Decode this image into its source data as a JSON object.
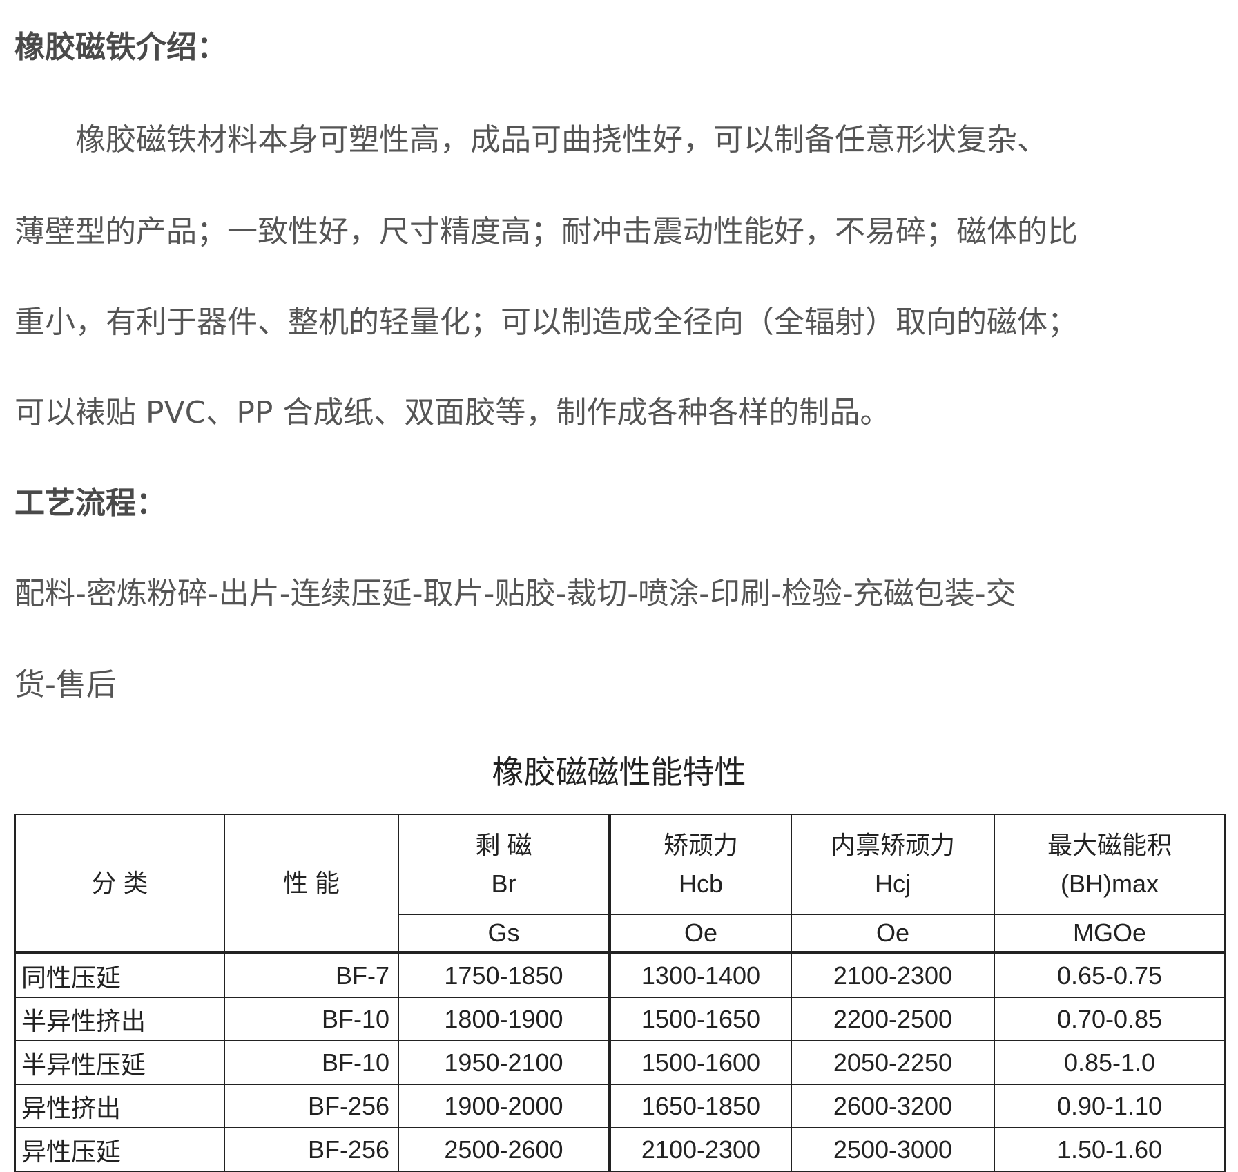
{
  "intro": {
    "heading": "橡胶磁铁介绍：",
    "lines": [
      "　　橡胶磁铁材料本身可塑性高，成品可曲挠性好，可以制备任意形状复杂、",
      "薄壁型的产品；一致性好，尺寸精度高；耐冲击震动性能好，不易碎；磁体的比",
      "重小，有利于器件、整机的轻量化；可以制造成全径向（全辐射）取向的磁体；",
      "可以裱贴 PVC、PP 合成纸、双面胶等，制作成各种各样的制品。"
    ]
  },
  "process": {
    "heading": "工艺流程：",
    "lines": [
      "配料-密炼粉碎-出片-连续压延-取片-贴胶-裁切-喷涂-印刷-检验-充磁包装-交",
      "货-售后"
    ]
  },
  "table": {
    "title": "橡胶磁磁性能特性",
    "headers": [
      "分 类",
      "性 能",
      "剩 磁\nBr",
      "矫顽力\nHcb",
      "内禀矫顽力\nHcj",
      "最大磁能积\n(BH)max"
    ],
    "units": [
      "Gs",
      "Oe",
      "Oe",
      "MGOe"
    ],
    "rows": [
      [
        "同性压延",
        "BF-7",
        "1750-1850",
        "1300-1400",
        "2100-2300",
        "0.65-0.75"
      ],
      [
        "半异性挤出",
        "BF-10",
        "1800-1900",
        "1500-1650",
        "2200-2500",
        "0.70-0.85"
      ],
      [
        "半异性压延",
        "BF-10",
        "1950-2100",
        "1500-1600",
        "2050-2250",
        "0.85-1.0"
      ],
      [
        "异性挤出",
        "BF-256",
        "1900-2000",
        "1650-1850",
        "2600-3200",
        "0.90-1.10"
      ],
      [
        "异性压延",
        "BF-256",
        "2500-2600",
        "2100-2300",
        "2500-3000",
        "1.50-1.60"
      ]
    ]
  }
}
